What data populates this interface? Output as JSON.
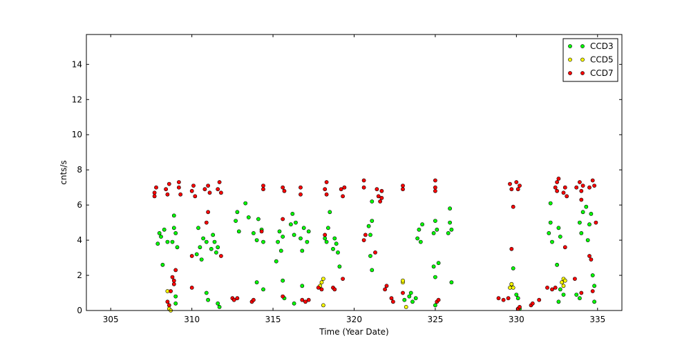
{
  "chart_data": {
    "type": "scatter",
    "title": "",
    "xlabel": "Time (Year Date)",
    "ylabel": "cnts/s",
    "xlim": [
      303.5,
      336.5
    ],
    "ylim": [
      0,
      15.7
    ],
    "xticks": [
      305,
      310,
      315,
      320,
      325,
      330,
      335
    ],
    "yticks": [
      0,
      2,
      4,
      6,
      8,
      10,
      12,
      14
    ],
    "grid": false,
    "legend_position": "top-right",
    "series": [
      {
        "name": "CCD3",
        "color": "#00ff00",
        "points": [
          [
            307.9,
            3.8
          ],
          [
            308.1,
            4.2
          ],
          [
            308.3,
            4.6
          ],
          [
            308.5,
            3.9
          ],
          [
            308.0,
            4.4
          ],
          [
            308.2,
            2.6
          ],
          [
            308.8,
            3.9
          ],
          [
            309.0,
            4.4
          ],
          [
            308.9,
            4.7
          ],
          [
            309.1,
            3.6
          ],
          [
            308.9,
            5.4
          ],
          [
            309.0,
            0.8
          ],
          [
            309.0,
            0.4
          ],
          [
            310.3,
            3.2
          ],
          [
            310.5,
            3.6
          ],
          [
            310.7,
            4.1
          ],
          [
            310.4,
            4.7
          ],
          [
            310.9,
            3.9
          ],
          [
            310.6,
            2.9
          ],
          [
            310.9,
            1.0
          ],
          [
            311.0,
            0.6
          ],
          [
            311.2,
            3.5
          ],
          [
            311.4,
            3.9
          ],
          [
            311.6,
            3.6
          ],
          [
            311.3,
            4.3
          ],
          [
            311.5,
            3.3
          ],
          [
            311.6,
            0.4
          ],
          [
            311.7,
            0.2
          ],
          [
            312.7,
            5.1
          ],
          [
            312.8,
            5.6
          ],
          [
            312.9,
            4.5
          ],
          [
            313.3,
            6.1
          ],
          [
            313.5,
            5.3
          ],
          [
            313.8,
            4.4
          ],
          [
            314.0,
            4.0
          ],
          [
            314.1,
            5.2
          ],
          [
            314.3,
            4.6
          ],
          [
            314.4,
            3.9
          ],
          [
            314.0,
            1.6
          ],
          [
            314.4,
            1.2
          ],
          [
            315.3,
            3.9
          ],
          [
            315.4,
            4.5
          ],
          [
            315.5,
            3.4
          ],
          [
            315.6,
            4.2
          ],
          [
            315.2,
            2.8
          ],
          [
            315.6,
            1.7
          ],
          [
            315.7,
            0.7
          ],
          [
            316.1,
            4.9
          ],
          [
            316.2,
            5.5
          ],
          [
            316.3,
            4.3
          ],
          [
            316.4,
            5.0
          ],
          [
            316.3,
            0.4
          ],
          [
            316.7,
            4.1
          ],
          [
            316.8,
            3.4
          ],
          [
            316.9,
            4.7
          ],
          [
            317.1,
            3.9
          ],
          [
            317.2,
            4.5
          ],
          [
            316.8,
            1.4
          ],
          [
            318.2,
            4.1
          ],
          [
            318.4,
            4.7
          ],
          [
            318.5,
            5.6
          ],
          [
            318.3,
            3.9
          ],
          [
            318.7,
            3.5
          ],
          [
            318.8,
            4.1
          ],
          [
            318.9,
            3.8
          ],
          [
            319.0,
            3.3
          ],
          [
            319.1,
            2.5
          ],
          [
            320.9,
            4.8
          ],
          [
            321.0,
            4.3
          ],
          [
            321.1,
            5.1
          ],
          [
            321.1,
            6.2
          ],
          [
            321.0,
            3.1
          ],
          [
            321.1,
            2.3
          ],
          [
            323.1,
            0.6
          ],
          [
            323.4,
            0.8
          ],
          [
            323.6,
            0.5
          ],
          [
            323.8,
            0.7
          ],
          [
            323.5,
            1.0
          ],
          [
            323.9,
            4.1
          ],
          [
            324.0,
            4.6
          ],
          [
            324.1,
            3.9
          ],
          [
            324.2,
            4.9
          ],
          [
            324.9,
            4.4
          ],
          [
            325.0,
            5.1
          ],
          [
            325.1,
            4.6
          ],
          [
            324.9,
            2.5
          ],
          [
            325.0,
            1.9
          ],
          [
            325.2,
            2.7
          ],
          [
            325.0,
            0.3
          ],
          [
            325.8,
            4.4
          ],
          [
            325.9,
            5.0
          ],
          [
            326.0,
            4.6
          ],
          [
            325.9,
            5.8
          ],
          [
            326.0,
            1.6
          ],
          [
            329.7,
            1.5
          ],
          [
            329.8,
            2.4
          ],
          [
            330.0,
            0.9
          ],
          [
            330.1,
            0.7
          ],
          [
            330.2,
            0.1
          ],
          [
            332.0,
            4.4
          ],
          [
            332.1,
            5.0
          ],
          [
            332.2,
            3.9
          ],
          [
            332.1,
            6.1
          ],
          [
            332.6,
            4.7
          ],
          [
            332.7,
            4.2
          ],
          [
            332.5,
            2.6
          ],
          [
            332.7,
            1.2
          ],
          [
            332.9,
            0.9
          ],
          [
            332.6,
            0.5
          ],
          [
            333.9,
            5.0
          ],
          [
            334.0,
            4.4
          ],
          [
            334.1,
            5.6
          ],
          [
            333.7,
            0.9
          ],
          [
            333.9,
            0.7
          ],
          [
            334.3,
            5.9
          ],
          [
            334.5,
            4.9
          ],
          [
            334.6,
            5.5
          ],
          [
            334.4,
            4.0
          ],
          [
            334.7,
            2.0
          ],
          [
            334.8,
            1.4
          ],
          [
            334.8,
            0.5
          ]
        ]
      },
      {
        "name": "CCD5",
        "color": "#ffff00",
        "points": [
          [
            308.5,
            1.1
          ],
          [
            308.6,
            0.1
          ],
          [
            308.7,
            0.0
          ],
          [
            317.9,
            1.4
          ],
          [
            318.0,
            1.6
          ],
          [
            318.1,
            1.8
          ],
          [
            318.1,
            0.3
          ],
          [
            323.0,
            1.6
          ],
          [
            323.0,
            1.7
          ],
          [
            323.2,
            0.2
          ],
          [
            329.6,
            1.3
          ],
          [
            329.7,
            1.5
          ],
          [
            329.8,
            1.3
          ],
          [
            332.8,
            1.6
          ],
          [
            332.9,
            1.8
          ],
          [
            332.9,
            1.4
          ],
          [
            333.0,
            1.7
          ]
        ]
      },
      {
        "name": "CCD7",
        "color": "#ff0000",
        "points": [
          [
            307.7,
            6.7
          ],
          [
            307.8,
            7.0
          ],
          [
            307.7,
            6.5
          ],
          [
            308.4,
            6.9
          ],
          [
            308.6,
            7.2
          ],
          [
            308.5,
            6.6
          ],
          [
            308.8,
            1.9
          ],
          [
            308.9,
            1.7
          ],
          [
            308.9,
            1.5
          ],
          [
            309.0,
            2.3
          ],
          [
            308.7,
            1.1
          ],
          [
            308.5,
            0.5
          ],
          [
            308.6,
            0.3
          ],
          [
            309.2,
            7.0
          ],
          [
            309.3,
            6.6
          ],
          [
            309.2,
            7.3
          ],
          [
            310.0,
            6.8
          ],
          [
            310.1,
            7.1
          ],
          [
            310.2,
            6.5
          ],
          [
            310.0,
            3.1
          ],
          [
            310.0,
            1.3
          ],
          [
            310.8,
            6.9
          ],
          [
            311.0,
            7.1
          ],
          [
            311.1,
            6.7
          ],
          [
            311.0,
            5.6
          ],
          [
            310.9,
            5.0
          ],
          [
            311.6,
            6.9
          ],
          [
            311.7,
            7.3
          ],
          [
            311.8,
            6.7
          ],
          [
            311.8,
            3.1
          ],
          [
            312.5,
            0.7
          ],
          [
            312.6,
            0.6
          ],
          [
            312.8,
            0.7
          ],
          [
            313.7,
            0.5
          ],
          [
            313.8,
            0.6
          ],
          [
            314.4,
            6.9
          ],
          [
            314.4,
            7.1
          ],
          [
            314.3,
            4.5
          ],
          [
            315.6,
            7.0
          ],
          [
            315.7,
            6.8
          ],
          [
            315.6,
            5.2
          ],
          [
            315.6,
            0.8
          ],
          [
            316.7,
            7.0
          ],
          [
            316.7,
            6.6
          ],
          [
            316.8,
            0.6
          ],
          [
            317.0,
            0.5
          ],
          [
            317.2,
            0.6
          ],
          [
            317.8,
            1.3
          ],
          [
            318.0,
            1.2
          ],
          [
            318.2,
            6.9
          ],
          [
            318.3,
            7.3
          ],
          [
            318.3,
            6.6
          ],
          [
            318.2,
            4.3
          ],
          [
            318.7,
            1.3
          ],
          [
            318.8,
            1.2
          ],
          [
            319.2,
            6.9
          ],
          [
            319.3,
            6.5
          ],
          [
            319.4,
            7.0
          ],
          [
            319.3,
            1.8
          ],
          [
            320.6,
            7.4
          ],
          [
            320.6,
            7.0
          ],
          [
            320.6,
            4.0
          ],
          [
            320.7,
            4.3
          ],
          [
            321.4,
            6.9
          ],
          [
            321.5,
            6.5
          ],
          [
            321.6,
            6.2
          ],
          [
            321.7,
            6.8
          ],
          [
            321.7,
            6.4
          ],
          [
            321.3,
            3.3
          ],
          [
            321.9,
            1.2
          ],
          [
            322.0,
            1.4
          ],
          [
            322.3,
            0.7
          ],
          [
            322.4,
            0.5
          ],
          [
            323.0,
            7.1
          ],
          [
            323.0,
            6.9
          ],
          [
            323.0,
            1.0
          ],
          [
            325.0,
            7.4
          ],
          [
            325.0,
            7.0
          ],
          [
            325.0,
            6.8
          ],
          [
            325.1,
            0.5
          ],
          [
            325.2,
            0.6
          ],
          [
            328.9,
            0.7
          ],
          [
            329.2,
            0.6
          ],
          [
            329.5,
            0.7
          ],
          [
            329.6,
            7.2
          ],
          [
            329.7,
            6.9
          ],
          [
            329.7,
            3.5
          ],
          [
            329.8,
            5.9
          ],
          [
            330.0,
            7.3
          ],
          [
            330.1,
            6.9
          ],
          [
            330.2,
            7.1
          ],
          [
            330.1,
            0.1
          ],
          [
            330.2,
            0.2
          ],
          [
            330.9,
            0.3
          ],
          [
            331.0,
            0.4
          ],
          [
            331.4,
            0.6
          ],
          [
            331.9,
            1.3
          ],
          [
            332.2,
            1.2
          ],
          [
            332.4,
            1.3
          ],
          [
            332.4,
            7.0
          ],
          [
            332.5,
            7.3
          ],
          [
            332.6,
            7.5
          ],
          [
            332.5,
            6.8
          ],
          [
            332.9,
            6.7
          ],
          [
            333.0,
            7.0
          ],
          [
            333.1,
            6.5
          ],
          [
            333.0,
            3.6
          ],
          [
            333.7,
            7.0
          ],
          [
            333.9,
            7.3
          ],
          [
            334.0,
            6.8
          ],
          [
            334.0,
            6.3
          ],
          [
            334.1,
            7.1
          ],
          [
            333.6,
            1.8
          ],
          [
            334.0,
            1.0
          ],
          [
            334.5,
            7.0
          ],
          [
            334.5,
            3.1
          ],
          [
            334.6,
            2.9
          ],
          [
            334.7,
            7.4
          ],
          [
            334.8,
            7.1
          ],
          [
            334.9,
            5.0
          ],
          [
            334.7,
            1.1
          ]
        ]
      }
    ]
  }
}
